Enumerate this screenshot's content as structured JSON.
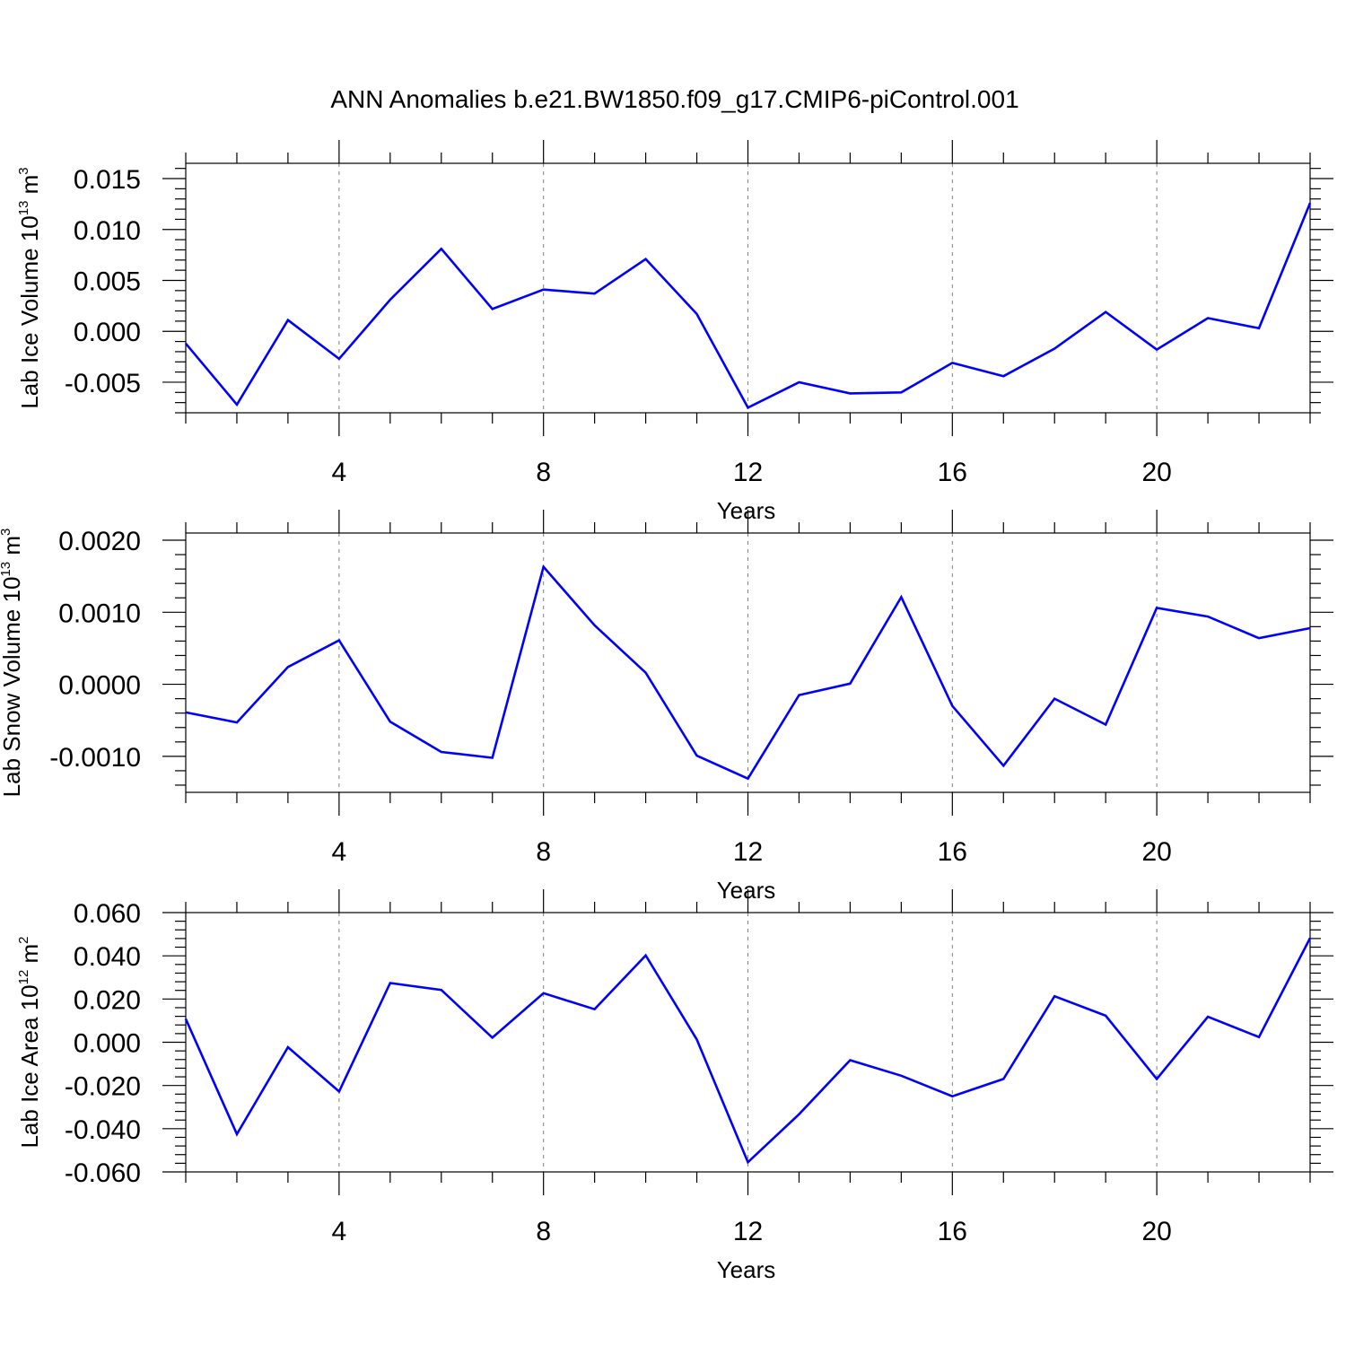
{
  "figure": {
    "title": "ANN Anomalies b.e21.BW1850.f09_g17.CMIP6-piControl.001"
  },
  "chart_data": [
    {
      "type": "line",
      "title": "",
      "xlabel": "Years",
      "ylabel": {
        "main": "Lab Ice Volume 10",
        "sup1": "13",
        "unit": " m",
        "sup2": "3"
      },
      "xlim": [
        1,
        23
      ],
      "ylim": [
        -0.008,
        0.0165
      ],
      "xticks": [
        4,
        8,
        12,
        16,
        20
      ],
      "xtick_labels": [
        "4",
        "8",
        "12",
        "16",
        "20"
      ],
      "yticks": [
        -0.005,
        0.0,
        0.005,
        0.01,
        0.015
      ],
      "ytick_labels": [
        "-0.005",
        "0.000",
        "0.005",
        "0.010",
        "0.015"
      ],
      "grid": "vertical dashed at major x ticks",
      "line_color": "#0000ff",
      "series": [
        {
          "x": [
            1,
            2,
            3,
            4,
            5,
            6,
            7,
            8,
            9,
            10,
            11,
            12,
            13,
            14,
            15,
            16,
            17,
            18,
            19,
            20,
            21,
            22,
            23
          ],
          "values": [
            -0.0012,
            -0.0072,
            0.0011,
            -0.0027,
            0.0031,
            0.0081,
            0.0022,
            0.0041,
            0.0037,
            0.0071,
            0.0017,
            -0.0075,
            -0.005,
            -0.0061,
            -0.006,
            -0.0031,
            -0.0044,
            -0.0017,
            0.0019,
            -0.0018,
            0.0013,
            0.0003,
            0.0126
          ]
        }
      ]
    },
    {
      "type": "line",
      "title": "",
      "xlabel": "Years",
      "ylabel": {
        "main": "Lab Snow Volume 10",
        "sup1": "13",
        "unit": " m",
        "sup2": "3"
      },
      "xlim": [
        1,
        23
      ],
      "ylim": [
        -0.0015,
        0.0021
      ],
      "xticks": [
        4,
        8,
        12,
        16,
        20
      ],
      "xtick_labels": [
        "4",
        "8",
        "12",
        "16",
        "20"
      ],
      "yticks": [
        -0.001,
        0.0,
        0.001,
        0.002
      ],
      "ytick_labels": [
        "-0.0010",
        "0.0000",
        "0.0010",
        "0.0020"
      ],
      "grid": "vertical dashed at major x ticks",
      "line_color": "#0000ff",
      "series": [
        {
          "x": [
            1,
            2,
            3,
            4,
            5,
            6,
            7,
            8,
            9,
            10,
            11,
            12,
            13,
            14,
            15,
            16,
            17,
            18,
            19,
            20,
            21,
            22,
            23
          ],
          "values": [
            -0.00039,
            -0.00053,
            0.00024,
            0.00061,
            -0.00052,
            -0.00094,
            -0.00102,
            0.00163,
            0.00082,
            0.00016,
            -0.00099,
            -0.00131,
            -0.00015,
            1e-05,
            0.00121,
            -0.0003,
            -0.00113,
            -0.0002,
            -0.00056,
            0.00106,
            0.00094,
            0.00064,
            0.00078
          ]
        }
      ]
    },
    {
      "type": "line",
      "title": "",
      "xlabel": "Years",
      "ylabel": {
        "main": "Lab Ice Area 10",
        "sup1": "12",
        "unit": " m",
        "sup2": "2"
      },
      "xlim": [
        1,
        23
      ],
      "ylim": [
        -0.06,
        0.06
      ],
      "xticks": [
        4,
        8,
        12,
        16,
        20
      ],
      "xtick_labels": [
        "4",
        "8",
        "12",
        "16",
        "20"
      ],
      "yticks": [
        -0.06,
        -0.04,
        -0.02,
        0.0,
        0.02,
        0.04,
        0.06
      ],
      "ytick_labels": [
        "-0.060",
        "-0.040",
        "-0.020",
        "0.000",
        "0.020",
        "0.040",
        "0.060"
      ],
      "grid": "vertical dashed at major x ticks",
      "line_color": "#0000ff",
      "series": [
        {
          "x": [
            1,
            2,
            3,
            4,
            5,
            6,
            7,
            8,
            9,
            10,
            11,
            12,
            13,
            14,
            15,
            16,
            17,
            18,
            19,
            20,
            21,
            22,
            23
          ],
          "values": [
            0.0108,
            -0.0425,
            -0.0023,
            -0.0228,
            0.0274,
            0.0242,
            0.0021,
            0.0227,
            0.0153,
            0.0402,
            0.0013,
            -0.0555,
            -0.0333,
            -0.0083,
            -0.0155,
            -0.025,
            -0.017,
            0.0213,
            0.0123,
            -0.017,
            0.0118,
            0.0024,
            0.0482
          ]
        }
      ]
    }
  ]
}
